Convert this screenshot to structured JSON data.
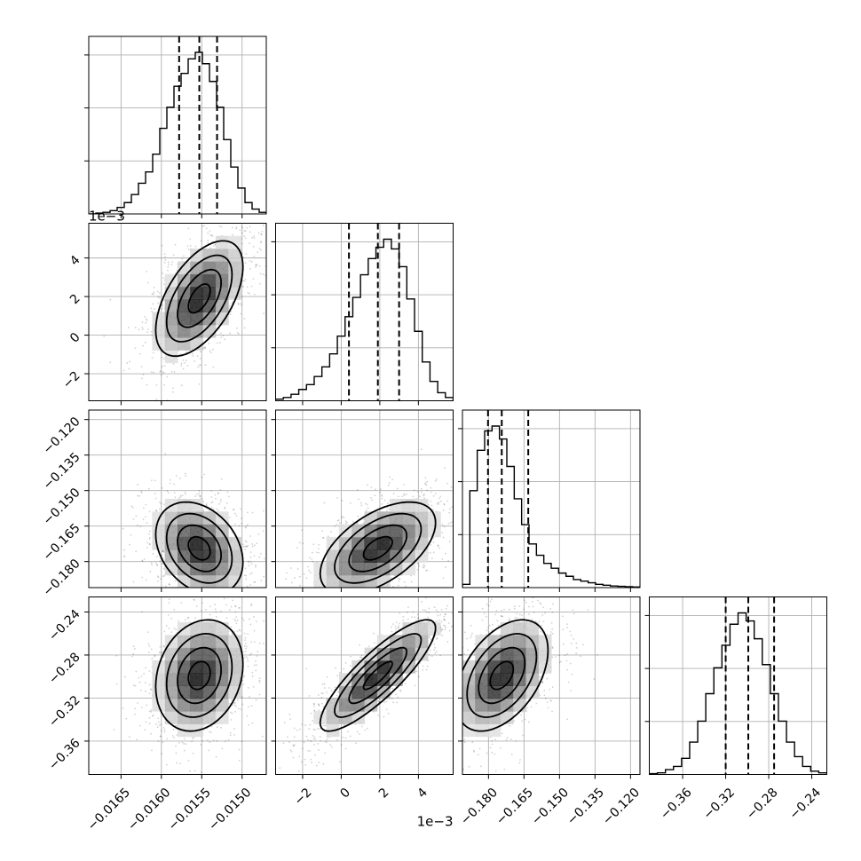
{
  "chart_data": {
    "type": "corner",
    "parameters": [
      {
        "axis_range": [
          -0.0169,
          -0.0147
        ],
        "ticks": [
          -0.0165,
          -0.016,
          -0.0155,
          -0.015
        ],
        "tick_labels": [
          "−0.0165",
          "−0.0160",
          "−0.0155",
          "−0.0150"
        ],
        "quantiles": [
          -0.01578,
          -0.01553,
          -0.01531
        ],
        "histogram": [
          0,
          0.005,
          0.01,
          0.02,
          0.04,
          0.07,
          0.12,
          0.19,
          0.26,
          0.37,
          0.53,
          0.66,
          0.79,
          0.87,
          0.96,
          1.0,
          0.93,
          0.82,
          0.66,
          0.46,
          0.29,
          0.16,
          0.07,
          0.03,
          0.01
        ]
      },
      {
        "axis_range": [
          -3.4,
          5.8
        ],
        "ticks": [
          -2,
          0,
          2,
          4
        ],
        "tick_labels": [
          "−2",
          "0",
          "2",
          "4"
        ],
        "offset_text": "1e−3",
        "quantiles": [
          0.4,
          1.9,
          3.0
        ],
        "histogram": [
          0.01,
          0.02,
          0.04,
          0.07,
          0.1,
          0.15,
          0.21,
          0.29,
          0.4,
          0.52,
          0.64,
          0.78,
          0.88,
          0.95,
          1.0,
          0.94,
          0.83,
          0.63,
          0.43,
          0.24,
          0.12,
          0.05,
          0.02
        ]
      },
      {
        "axis_range": [
          -0.191,
          -0.116
        ],
        "ticks": [
          -0.18,
          -0.165,
          -0.15,
          -0.135,
          -0.12
        ],
        "tick_labels": [
          "−0.180",
          "−0.165",
          "−0.150",
          "−0.135",
          "−0.120"
        ],
        "quantiles": [
          -0.1802,
          -0.1744,
          -0.1632
        ],
        "histogram": [
          0.02,
          0.6,
          0.85,
          0.97,
          1.0,
          0.92,
          0.75,
          0.55,
          0.39,
          0.27,
          0.2,
          0.15,
          0.12,
          0.09,
          0.07,
          0.05,
          0.04,
          0.03,
          0.02,
          0.015,
          0.01,
          0.008,
          0.006,
          0.004
        ]
      },
      {
        "axis_range": [
          -0.391,
          -0.226
        ],
        "ticks": [
          -0.36,
          -0.32,
          -0.28,
          -0.24
        ],
        "tick_labels": [
          "−0.36",
          "−0.32",
          "−0.28",
          "−0.24"
        ],
        "quantiles": [
          -0.32,
          -0.299,
          -0.275
        ],
        "histogram": [
          0.005,
          0.01,
          0.03,
          0.05,
          0.1,
          0.2,
          0.33,
          0.5,
          0.66,
          0.8,
          0.93,
          1.0,
          0.95,
          0.84,
          0.68,
          0.5,
          0.33,
          0.2,
          0.11,
          0.05,
          0.02,
          0.01
        ]
      }
    ],
    "pair_correlations": {
      "1-0": 0.55,
      "2-0": -0.3,
      "2-1": 0.55,
      "3-0": 0.2,
      "3-1": 0.85,
      "3-2": 0.45
    },
    "diag_y_ticks": 3,
    "grid": true
  }
}
